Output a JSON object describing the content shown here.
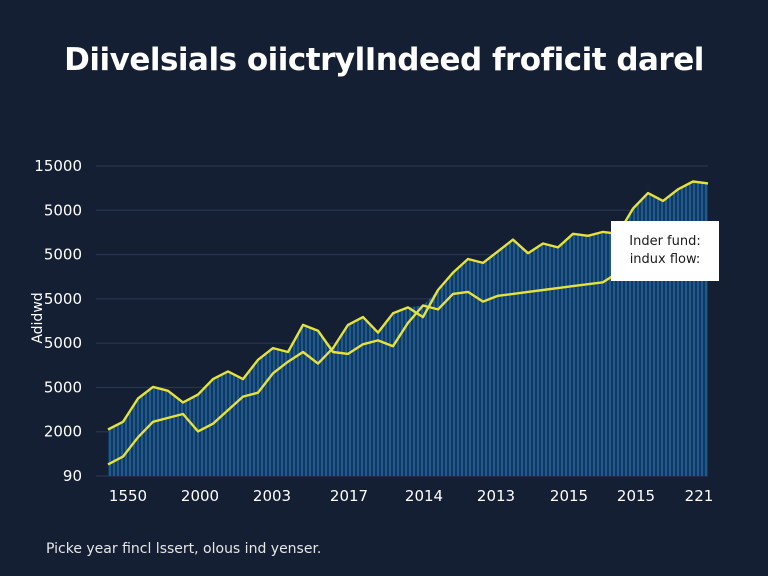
{
  "title": "Diivelsials oiictrylIndeed froficit darel",
  "footnote": "Picke year fincl lssert, olous ind yenser.",
  "legend": {
    "line1": "Inder fund:",
    "line2": "indux flow:"
  },
  "colors": {
    "background": "#141f33",
    "area_fill": "#1f5a8e",
    "bar_stripe": "#0e2a4d",
    "line": "#e6e23a",
    "grid": "#2a3a55"
  },
  "chart_data": {
    "type": "area",
    "title": "Diivelsials oiictrylIndeed froficit darel",
    "ylabel": "Adidwd",
    "xlabel": "",
    "y_tick_labels": [
      "90",
      "2000",
      "5000",
      "5000",
      "5000",
      "5000",
      "5000",
      "15000"
    ],
    "x_tick_labels": [
      "1550",
      "2000",
      "2003",
      "2017",
      "2014",
      "2013",
      "2015",
      "2015",
      "221"
    ],
    "grid": true,
    "legend_position": "right",
    "x_index": [
      0,
      1,
      2,
      3,
      4,
      5,
      6,
      7,
      8,
      9,
      10,
      11,
      12,
      13,
      14,
      15,
      16,
      17,
      18,
      19,
      20,
      21,
      22,
      23,
      24,
      25,
      26,
      27,
      28,
      29,
      30,
      31,
      32,
      33,
      34,
      35,
      36,
      37,
      38,
      39,
      40
    ],
    "series": [
      {
        "values": [
          0.6,
          1.0,
          2.0,
          2.8,
          3.0,
          3.2,
          2.3,
          2.7,
          3.4,
          4.1,
          4.3,
          5.3,
          5.9,
          6.4,
          5.8,
          6.6,
          7.8,
          8.2,
          7.4,
          8.4,
          8.7,
          8.2,
          9.6,
          10.5,
          11.2,
          11.0,
          11.6,
          12.2,
          11.5,
          12.0,
          11.8,
          12.5,
          12.4,
          12.6,
          12.5,
          13.8,
          14.6,
          14.2,
          14.8,
          15.2,
          15.1
        ]
      },
      {
        "values": [
          2.4,
          2.8,
          4.0,
          4.6,
          4.4,
          3.8,
          4.2,
          5.0,
          5.4,
          5.0,
          6.0,
          6.6,
          6.4,
          7.8,
          7.5,
          6.4,
          6.3,
          6.8,
          7.0,
          6.7,
          7.9,
          8.8,
          8.6,
          9.4,
          9.5,
          9.0,
          9.3,
          9.4,
          9.5,
          9.6,
          9.7,
          9.8,
          9.9,
          10.0,
          10.5,
          11.1,
          10.9,
          11.5,
          12.5,
          12.8,
          13.0
        ]
      }
    ]
  }
}
